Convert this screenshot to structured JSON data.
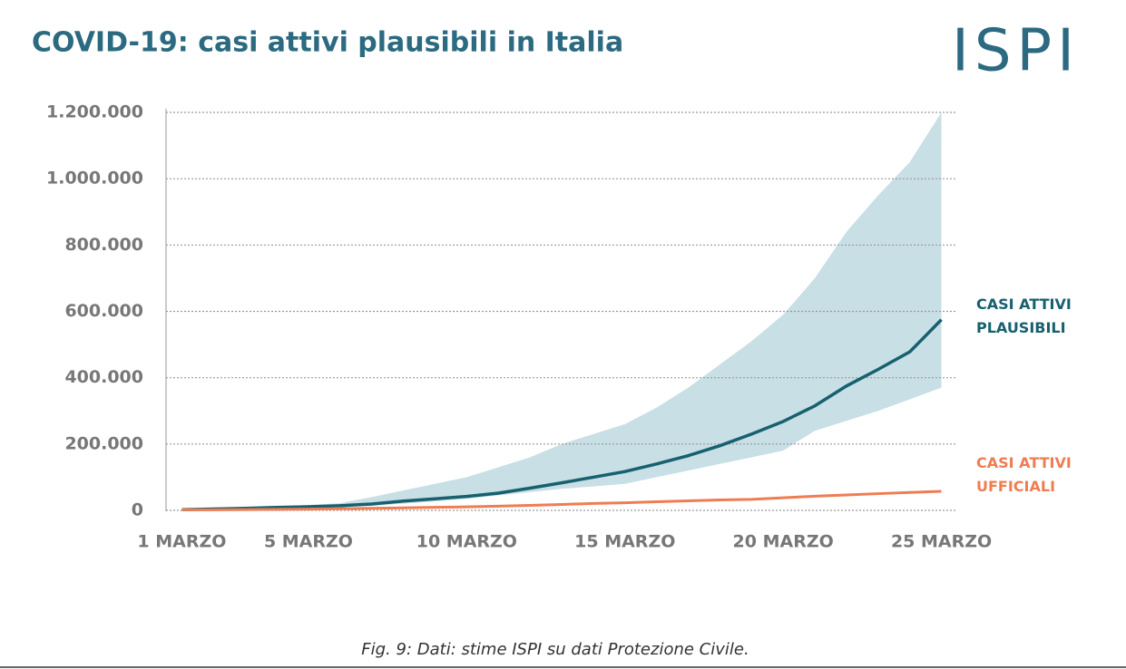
{
  "chart_data": {
    "type": "line",
    "title": "COVID-19: casi attivi plausibili in Italia",
    "logo": "ISPI",
    "caption": "Fig. 9: Dati: stime ISPI su dati Protezione Civile.",
    "x": [
      1,
      2,
      3,
      4,
      5,
      6,
      7,
      8,
      9,
      10,
      11,
      12,
      13,
      14,
      15,
      16,
      17,
      18,
      19,
      20,
      21,
      22,
      23,
      24,
      25
    ],
    "xlim": [
      0.5,
      25.5
    ],
    "xticks": [
      {
        "value": 1,
        "label": "1 MARZO"
      },
      {
        "value": 5,
        "label": "5 MARZO"
      },
      {
        "value": 10,
        "label": "10 MARZO"
      },
      {
        "value": 15,
        "label": "15 MARZO"
      },
      {
        "value": 20,
        "label": "20 MARZO"
      },
      {
        "value": 25,
        "label": "25 MARZO"
      }
    ],
    "ylim": [
      0,
      1200000
    ],
    "yticks": [
      0,
      {
        "value": 200000,
        "label": "200.000"
      },
      {
        "value": 400000,
        "label": "400.000"
      },
      {
        "value": 600000,
        "label": "600.000"
      },
      {
        "value": 800000,
        "label": "800.000"
      },
      {
        "value": 1000000,
        "label": "1.000.000"
      },
      {
        "value": 1200000,
        "label": "1.200.000"
      }
    ],
    "grid": true,
    "band": {
      "color": "#c8dfe5",
      "lower": [
        2000,
        3500,
        5000,
        7000,
        9000,
        11000,
        14000,
        20000,
        27000,
        35000,
        45000,
        55000,
        65000,
        72000,
        80000,
        100000,
        120000,
        140000,
        160000,
        180000,
        240000,
        270000,
        300000,
        335000,
        370000
      ],
      "upper": [
        2000,
        5000,
        8000,
        12000,
        16000,
        22000,
        40000,
        60000,
        80000,
        100000,
        130000,
        160000,
        200000,
        230000,
        260000,
        310000,
        370000,
        440000,
        510000,
        590000,
        700000,
        840000,
        950000,
        1050000,
        1200000
      ]
    },
    "series": [
      {
        "name": "CASI ATTIVI PLAUSIBILI",
        "color": "#17606f",
        "values": [
          2000,
          4000,
          6000,
          9000,
          11000,
          14000,
          19000,
          28000,
          35000,
          42000,
          52000,
          67000,
          83000,
          100000,
          117000,
          140000,
          165000,
          195000,
          230000,
          268000,
          315000,
          375000,
          425000,
          478000,
          575000
        ]
      },
      {
        "name": "CASI ATTIVI UFFICIALI",
        "color": "#ef7d52",
        "values": [
          1600,
          1800,
          2300,
          3000,
          3900,
          5000,
          6000,
          7400,
          9100,
          10600,
          12800,
          14900,
          17700,
          21000,
          23000,
          26000,
          28700,
          31500,
          33200,
          37900,
          42700,
          46600,
          50400,
          54000,
          57500
        ]
      }
    ]
  }
}
